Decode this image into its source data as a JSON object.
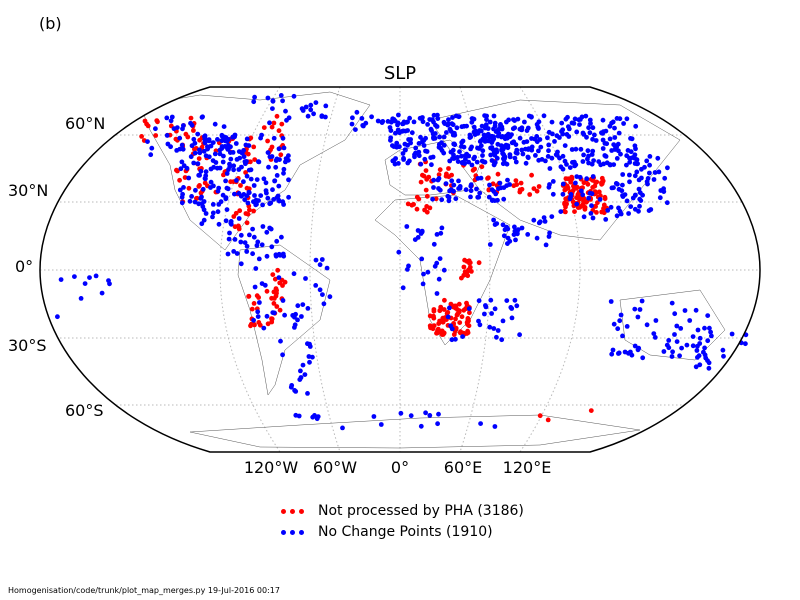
{
  "panel_label": "(b)",
  "title": "SLP",
  "lat_labels": {
    "n60": "60°N",
    "n30": "30°N",
    "eq": "0°",
    "s30": "30°S",
    "s60": "60°S"
  },
  "lon_labels": {
    "w120": "120°W",
    "w60": "60°W",
    "p0": "0°",
    "e60": "60°E",
    "e120": "120°E"
  },
  "projection": "Robinson",
  "grid": "dotted graticule every 30° latitude, 60° longitude",
  "series": [
    {
      "name": "Not processed by PHA (3186)",
      "color": "#ff0000",
      "marker": "filled-circle"
    },
    {
      "name": "No Change Points (1910)",
      "color": "#0000ff",
      "marker": "filled-circle"
    }
  ],
  "footer": "Homogenisation/code/trunk/plot_map_merges.py   19-Jul-2016 00:17"
}
